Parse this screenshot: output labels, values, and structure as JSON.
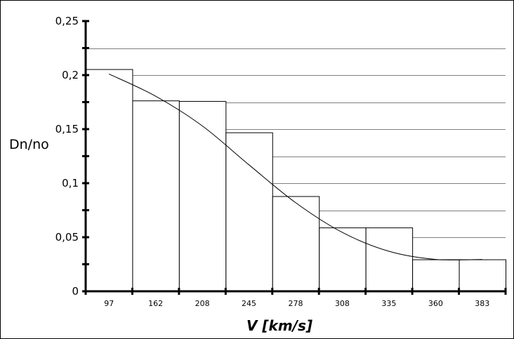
{
  "chart_data": {
    "type": "bar",
    "xlabel": "V [km/s]",
    "ylabel": "Dn/no",
    "categories": [
      "97",
      "162",
      "208",
      "245",
      "278",
      "308",
      "335",
      "360",
      "383"
    ],
    "series": [
      {
        "type": "bar",
        "values": [
          0.2055,
          0.1765,
          0.176,
          0.147,
          0.088,
          0.059,
          0.059,
          0.0295,
          0.0295
        ]
      },
      {
        "type": "line",
        "values": [
          0.201,
          0.1805,
          0.153,
          0.117,
          0.082,
          0.0545,
          0.037,
          0.0295,
          0.0295
        ]
      }
    ],
    "ylim": [
      0,
      0.25
    ],
    "yticks": [
      0,
      0.05,
      0.1,
      0.15,
      0.2,
      0.25
    ],
    "ytick_labels": [
      "0",
      "0,05",
      "0,1",
      "0,15",
      "0,2",
      "0,25"
    ],
    "grid": true
  }
}
